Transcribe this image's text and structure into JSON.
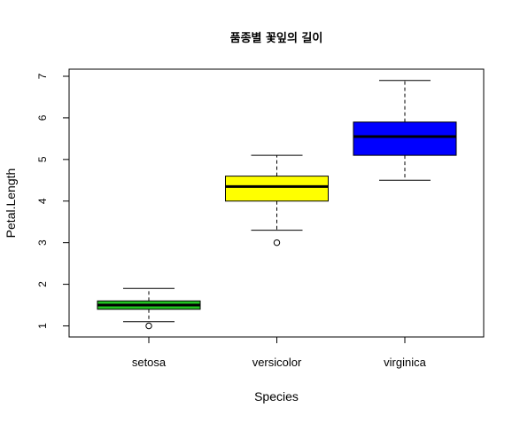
{
  "chart_data": {
    "type": "boxplot",
    "title": "품종별 꽃잎의 길이",
    "xlabel": "Species",
    "ylabel": "Petal.Length",
    "categories": [
      "setosa",
      "versicolor",
      "virginica"
    ],
    "ylim": [
      0.8,
      7.2
    ],
    "yticks": [
      "1",
      "2",
      "3",
      "4",
      "5",
      "6",
      "7"
    ],
    "grid": false,
    "boxes": [
      {
        "category": "setosa",
        "fill": "#22c422",
        "whisker_low": 1.1,
        "q1": 1.4,
        "median": 1.5,
        "q3": 1.6,
        "whisker_high": 1.9,
        "outliers": [
          1.0
        ]
      },
      {
        "category": "versicolor",
        "fill": "#ffff00",
        "whisker_low": 3.3,
        "q1": 4.0,
        "median": 4.35,
        "q3": 4.6,
        "whisker_high": 5.1,
        "outliers": [
          3.0
        ]
      },
      {
        "category": "virginica",
        "fill": "#0000ff",
        "whisker_low": 4.5,
        "q1": 5.1,
        "median": 5.55,
        "q3": 5.9,
        "whisker_high": 6.9,
        "outliers": []
      }
    ]
  }
}
